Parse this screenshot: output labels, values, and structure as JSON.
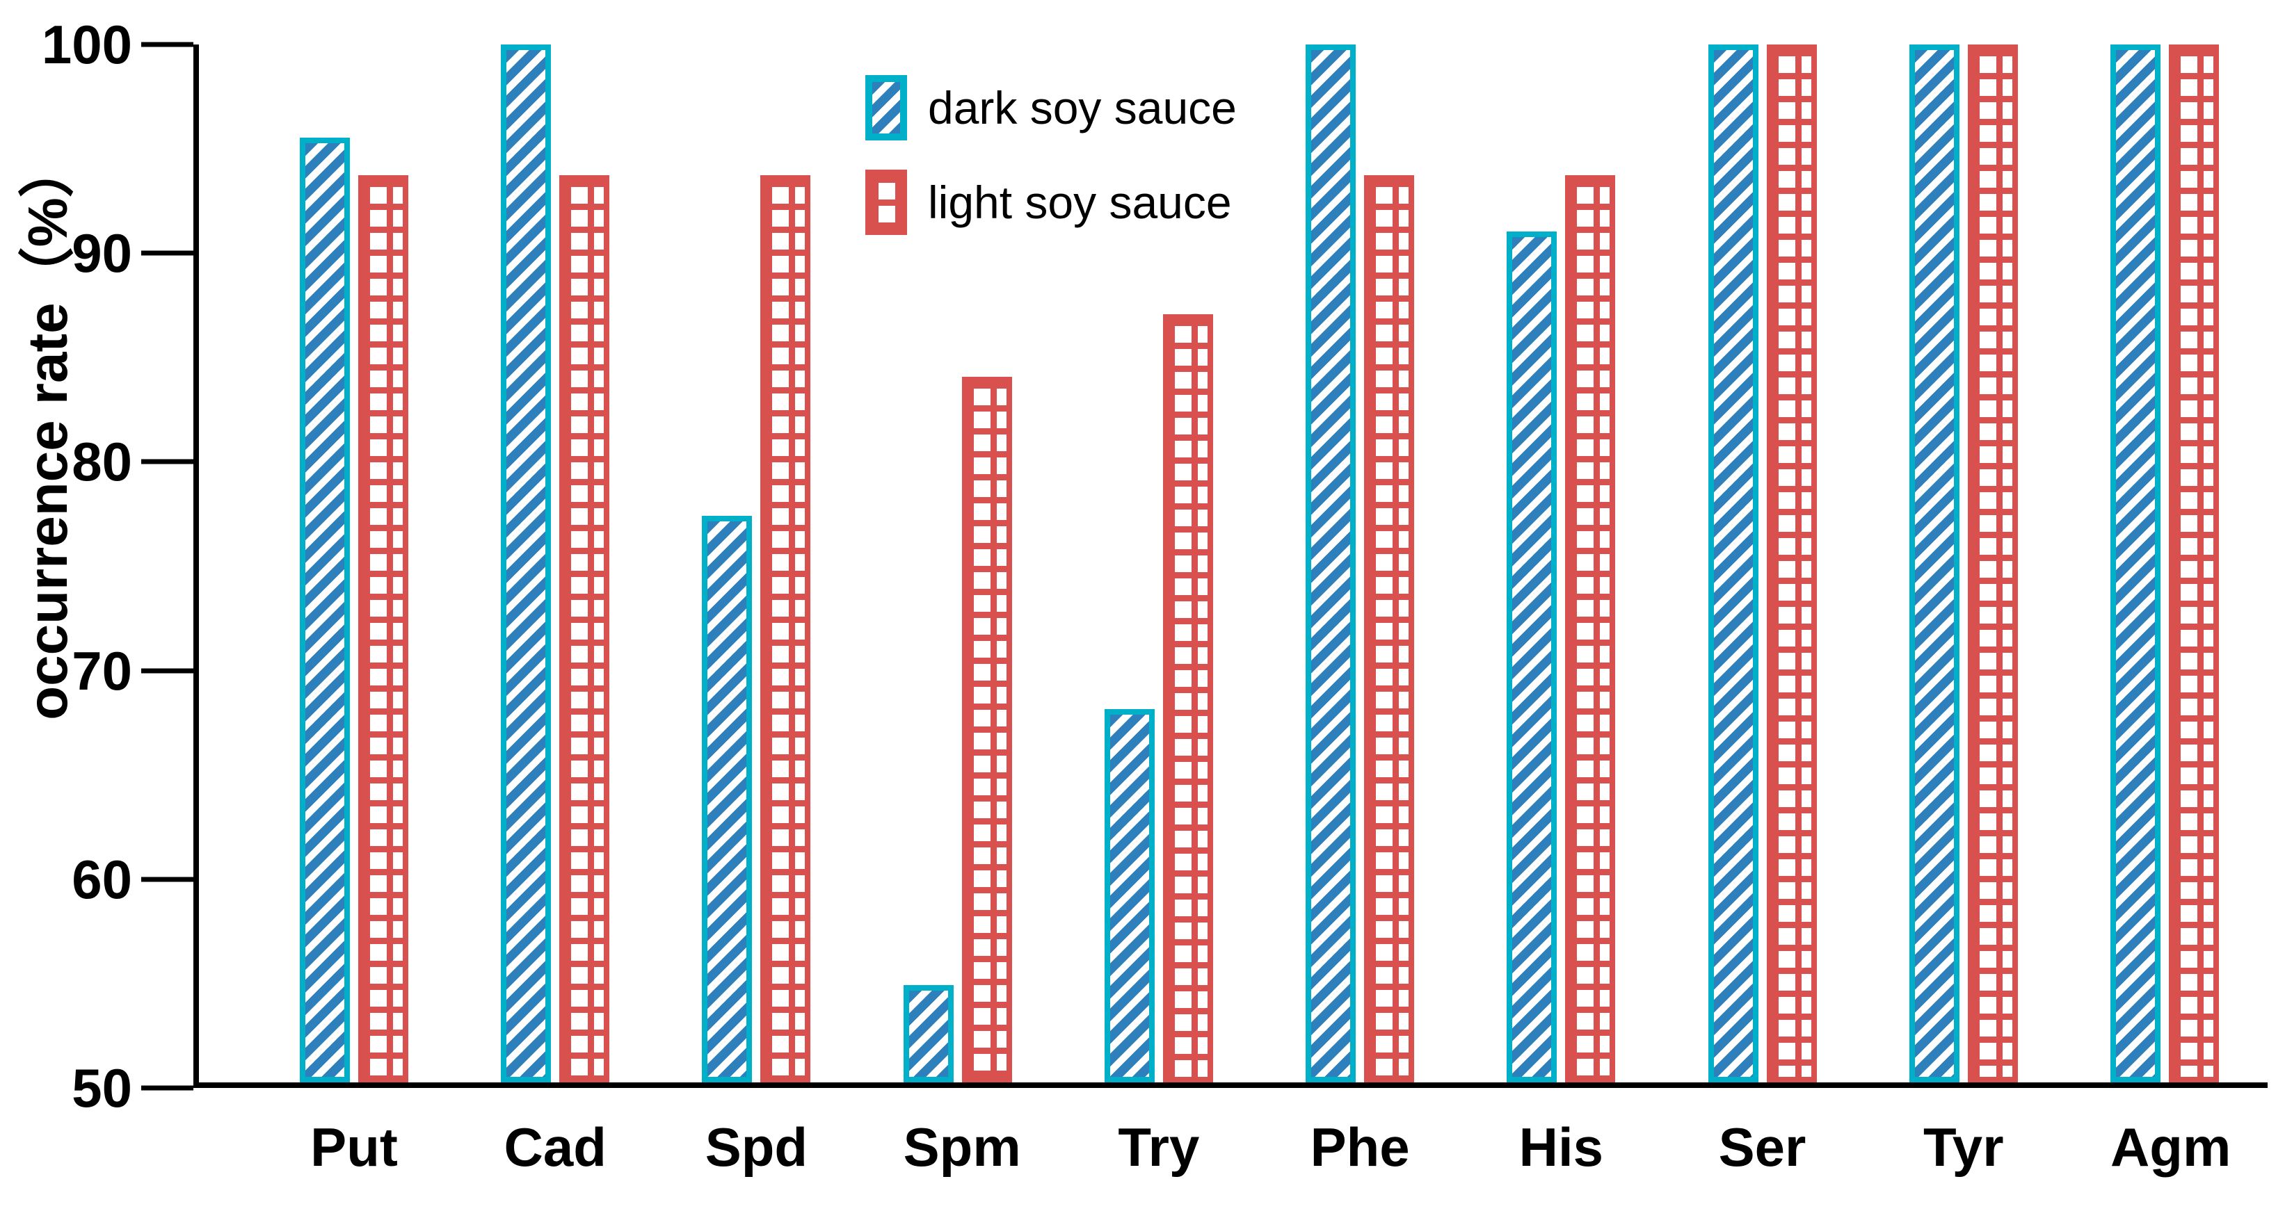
{
  "chart_data": {
    "type": "bar",
    "title": "",
    "xlabel": "",
    "ylabel": "occurrence rate（%）",
    "ylim": [
      50,
      100
    ],
    "yticks": [
      100,
      90,
      80,
      70,
      60,
      50
    ],
    "grid": false,
    "legend_position": "upper-left-of-center",
    "categories": [
      "Put",
      "Cad",
      "Spd",
      "Spm",
      "Try",
      "Phe",
      "His",
      "Ser",
      "Tyr",
      "Agm"
    ],
    "series": [
      {
        "name": "dark soy sauce",
        "pattern": "diagonal-hatch",
        "values": [
          95.5,
          100,
          77.3,
          54.7,
          68,
          100,
          91,
          100,
          100,
          100
        ]
      },
      {
        "name": "light soy sauce",
        "pattern": "grid-hatch",
        "values": [
          93.7,
          93.7,
          93.7,
          84,
          87,
          93.7,
          93.7,
          100,
          100,
          100
        ]
      }
    ]
  },
  "colors": {
    "blue_fill": "#2e80bd",
    "blue_border": "#00b0c8",
    "red": "#d9514e",
    "axis": "#000000",
    "background": "#ffffff"
  }
}
